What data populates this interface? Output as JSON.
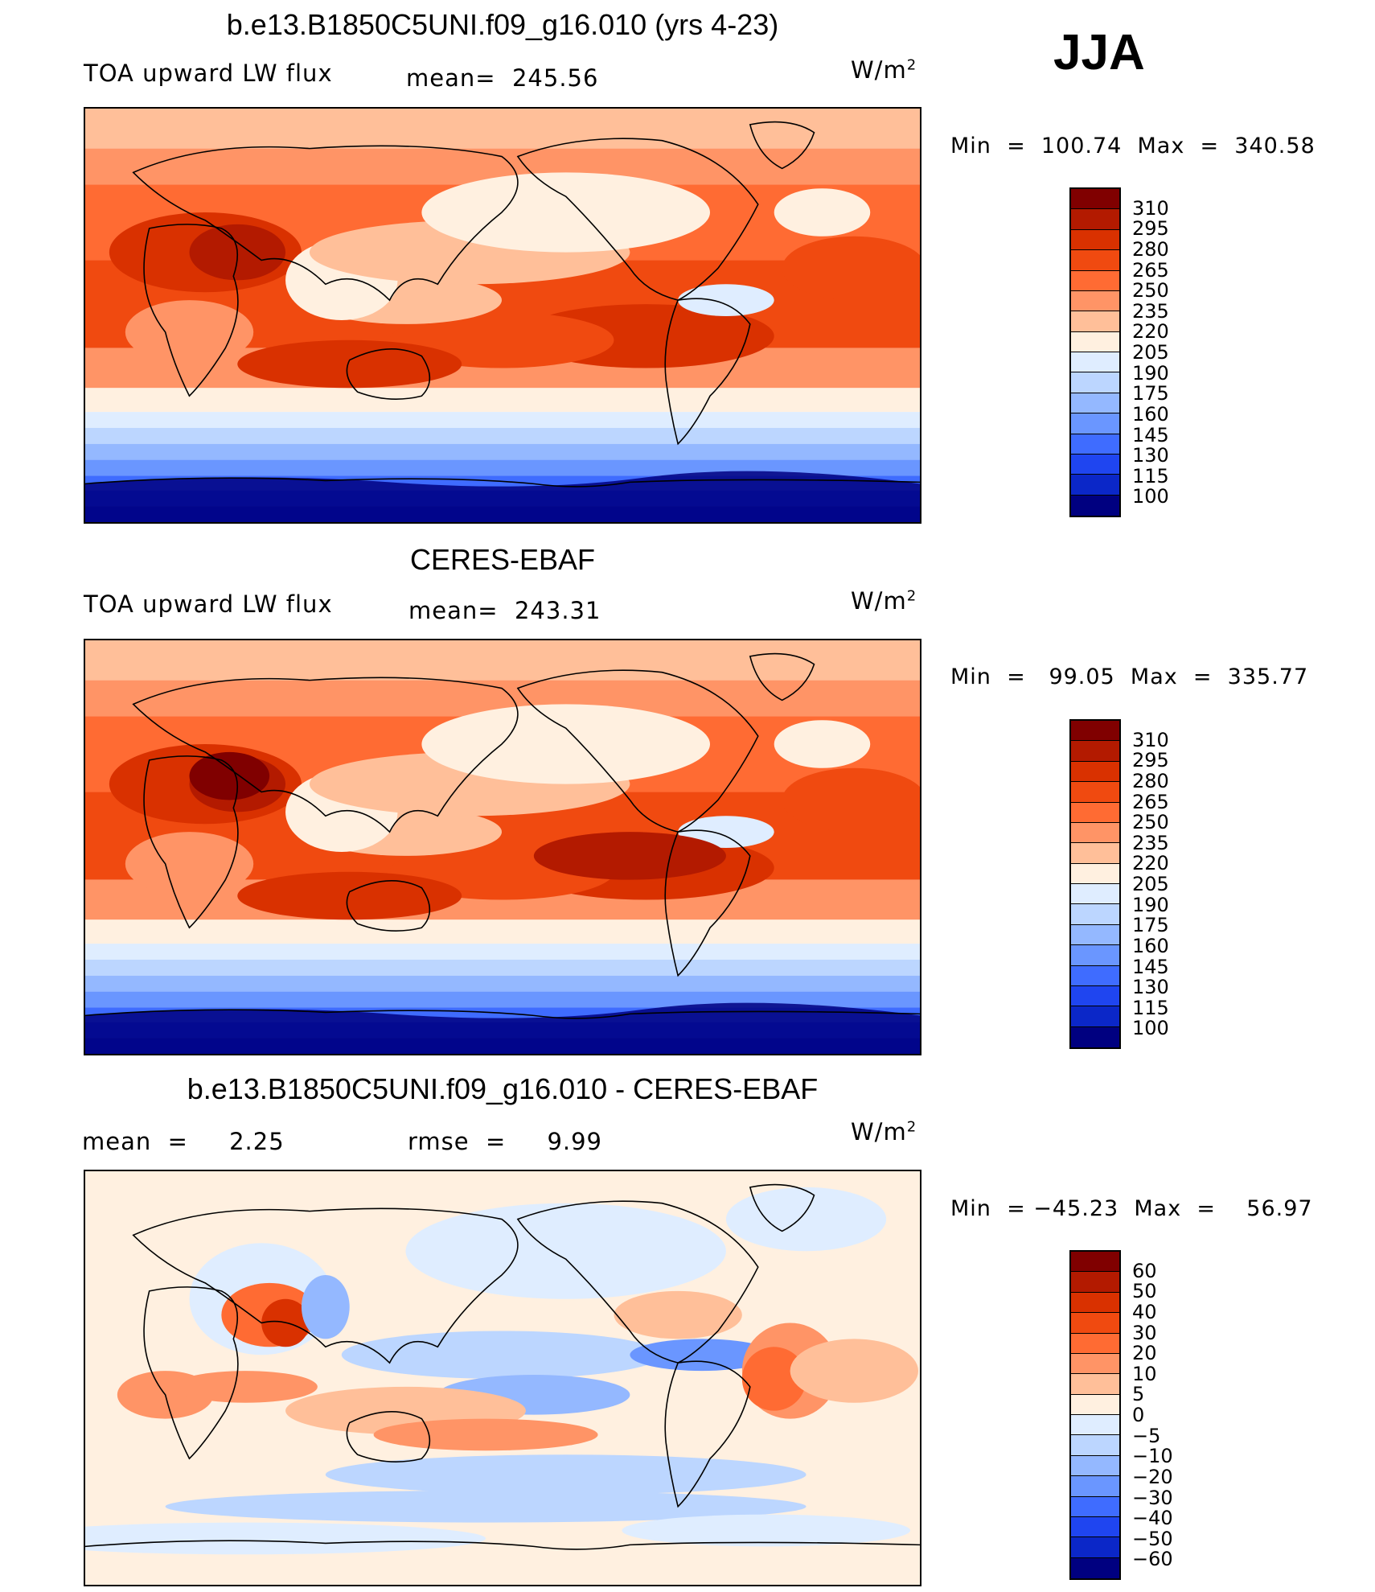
{
  "season": "JJA",
  "panels": [
    {
      "title": "b.e13.B1850C5UNI.f09_g16.010 (yrs 4-23)",
      "left": "TOA upward LW flux",
      "center": "mean=  245.56",
      "units": "W/m",
      "units_sup": "2",
      "minmax": "Min  =  100.74  Max  =  340.58",
      "map_kind": "climatology"
    },
    {
      "title": "CERES-EBAF",
      "left": "TOA upward LW flux",
      "center": "mean=  243.31",
      "units": "W/m",
      "units_sup": "2",
      "minmax": "Min  =   99.05  Max  =  335.77",
      "map_kind": "climatology"
    },
    {
      "title": "b.e13.B1850C5UNI.f09_g16.010 - CERES-EBAF",
      "left": "mean  =     2.25",
      "center": "rmse  =     9.99",
      "units": "W/m",
      "units_sup": "2",
      "minmax": "Min  = −45.23  Max  =    56.97",
      "map_kind": "difference"
    }
  ],
  "colorbars": {
    "climatology": {
      "labels": [
        "310",
        "295",
        "280",
        "265",
        "250",
        "235",
        "220",
        "205",
        "190",
        "175",
        "160",
        "145",
        "130",
        "115",
        "100"
      ],
      "colors": [
        "#800000",
        "#b31a00",
        "#d93100",
        "#f04a10",
        "#ff6b33",
        "#ff9466",
        "#ffbf99",
        "#fff0e0",
        "#dfedff",
        "#bcd6ff",
        "#94b8ff",
        "#6a96ff",
        "#3f6cff",
        "#1f45f0",
        "#0b27c8",
        "#000080"
      ]
    },
    "difference": {
      "labels": [
        "60",
        "50",
        "40",
        "30",
        "20",
        "10",
        "5",
        "0",
        "−5",
        "−10",
        "−20",
        "−30",
        "−40",
        "−50",
        "−60"
      ],
      "colors": [
        "#800000",
        "#b31a00",
        "#d93100",
        "#f04a10",
        "#ff6b33",
        "#ff9466",
        "#ffbf99",
        "#fff0e0",
        "#dfedff",
        "#bcd6ff",
        "#94b8ff",
        "#6a96ff",
        "#3f6cff",
        "#1f45f0",
        "#0b27c8",
        "#000080"
      ]
    }
  }
}
